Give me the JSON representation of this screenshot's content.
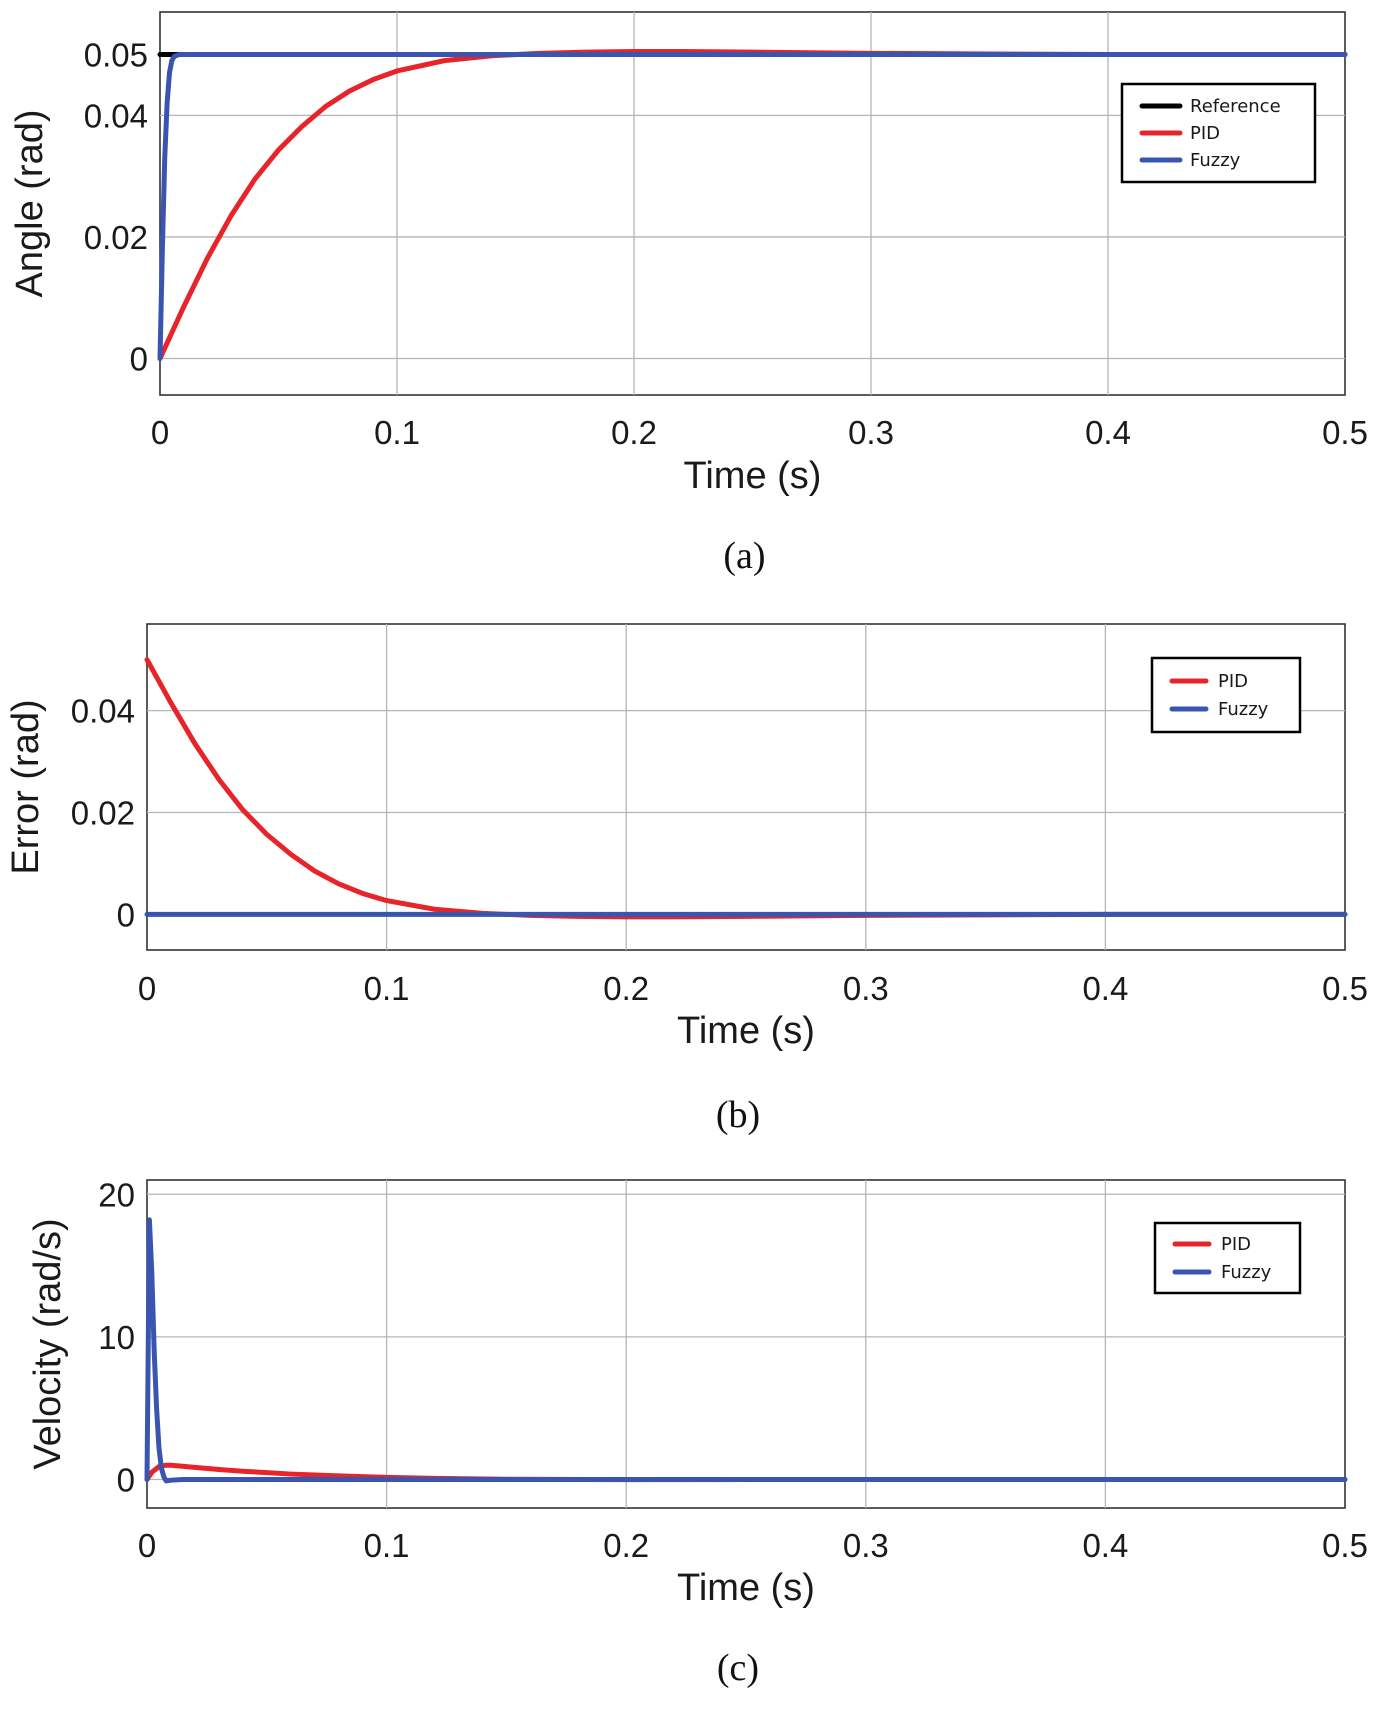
{
  "chart_data": [
    {
      "type": "line",
      "caption": "(a)",
      "xlabel": "Time (s)",
      "ylabel": "Angle (rad)",
      "xlim": [
        0,
        0.5
      ],
      "ylim": [
        -0.006,
        0.057
      ],
      "xticks": [
        0,
        0.1,
        0.2,
        0.3,
        0.4,
        0.5
      ],
      "xtick_labels": [
        "0",
        "0.1",
        "0.2",
        "0.3",
        "0.4",
        "0.5"
      ],
      "yticks": [
        0,
        0.02,
        0.04,
        0.05
      ],
      "ytick_labels": [
        "0",
        "0.02",
        "0.04",
        "0.05"
      ],
      "grid": true,
      "legend_position": "top-right",
      "series": [
        {
          "name": "Reference",
          "color": "#000000",
          "x": [
            0,
            0.5
          ],
          "y": [
            0.05,
            0.05
          ]
        },
        {
          "name": "PID",
          "color": "#e8242b",
          "x": [
            0,
            0.01,
            0.02,
            0.03,
            0.04,
            0.05,
            0.06,
            0.07,
            0.08,
            0.09,
            0.1,
            0.12,
            0.14,
            0.16,
            0.18,
            0.2,
            0.22,
            0.25,
            0.3,
            0.35,
            0.4,
            0.45,
            0.5
          ],
          "y": [
            0,
            0.0085,
            0.0165,
            0.0235,
            0.0295,
            0.0343,
            0.0382,
            0.0415,
            0.044,
            0.0459,
            0.0473,
            0.049,
            0.0498,
            0.0502,
            0.0504,
            0.0505,
            0.0505,
            0.0504,
            0.0502,
            0.0501,
            0.05,
            0.05,
            0.05
          ]
        },
        {
          "name": "Fuzzy",
          "color": "#3a55b0",
          "x": [
            0,
            0.001,
            0.002,
            0.003,
            0.004,
            0.005,
            0.006,
            0.008,
            0.01,
            0.5
          ],
          "y": [
            0,
            0.018,
            0.033,
            0.042,
            0.047,
            0.049,
            0.0497,
            0.05,
            0.05,
            0.05
          ]
        }
      ]
    },
    {
      "type": "line",
      "caption": "(b)",
      "xlabel": "Time (s)",
      "ylabel": "Error (rad)",
      "xlim": [
        0,
        0.5
      ],
      "ylim": [
        -0.007,
        0.057
      ],
      "xticks": [
        0,
        0.1,
        0.2,
        0.3,
        0.4,
        0.5
      ],
      "xtick_labels": [
        "0",
        "0.1",
        "0.2",
        "0.3",
        "0.4",
        "0.5"
      ],
      "yticks": [
        0,
        0.02,
        0.04
      ],
      "ytick_labels": [
        "0",
        "0.02",
        "0.04"
      ],
      "grid": true,
      "legend_position": "top-right",
      "series": [
        {
          "name": "PID",
          "color": "#e8242b",
          "x": [
            0,
            0.01,
            0.02,
            0.03,
            0.04,
            0.05,
            0.06,
            0.07,
            0.08,
            0.09,
            0.1,
            0.12,
            0.14,
            0.16,
            0.18,
            0.2,
            0.22,
            0.25,
            0.3,
            0.35,
            0.4,
            0.45,
            0.5
          ],
          "y": [
            0.05,
            0.0415,
            0.0335,
            0.0265,
            0.0205,
            0.0157,
            0.0118,
            0.0085,
            0.006,
            0.0041,
            0.0027,
            0.001,
            0.0002,
            -0.0002,
            -0.0004,
            -0.0005,
            -0.0005,
            -0.0004,
            -0.0002,
            -0.0001,
            0,
            0,
            0
          ]
        },
        {
          "name": "Fuzzy",
          "color": "#3a55b0",
          "x": [
            0,
            0.5
          ],
          "y": [
            0,
            0
          ]
        }
      ]
    },
    {
      "type": "line",
      "caption": "(c)",
      "xlabel": "Time (s)",
      "ylabel": "Velocity (rad/s)",
      "xlim": [
        0,
        0.5
      ],
      "ylim": [
        -2,
        21
      ],
      "xticks": [
        0,
        0.1,
        0.2,
        0.3,
        0.4,
        0.5
      ],
      "xtick_labels": [
        "0",
        "0.1",
        "0.2",
        "0.3",
        "0.4",
        "0.5"
      ],
      "yticks": [
        0,
        10,
        20
      ],
      "ytick_labels": [
        "0",
        "10",
        "20"
      ],
      "grid": true,
      "legend_position": "top-right",
      "series": [
        {
          "name": "PID",
          "color": "#e8242b",
          "x": [
            0,
            0.002,
            0.005,
            0.008,
            0.01,
            0.02,
            0.03,
            0.04,
            0.05,
            0.06,
            0.08,
            0.1,
            0.12,
            0.15,
            0.2,
            0.3,
            0.4,
            0.5
          ],
          "y": [
            0,
            0.5,
            0.9,
            1.0,
            1.0,
            0.85,
            0.7,
            0.58,
            0.48,
            0.38,
            0.25,
            0.15,
            0.08,
            0.02,
            -0.01,
            0,
            0,
            0
          ]
        },
        {
          "name": "Fuzzy",
          "color": "#3a55b0",
          "x": [
            0,
            0.001,
            0.002,
            0.003,
            0.004,
            0.005,
            0.006,
            0.007,
            0.008,
            0.01,
            0.015,
            0.5
          ],
          "y": [
            0,
            18.2,
            14.5,
            9.0,
            5.0,
            2.2,
            0.8,
            0.2,
            -0.1,
            -0.05,
            0,
            0
          ]
        }
      ]
    }
  ]
}
